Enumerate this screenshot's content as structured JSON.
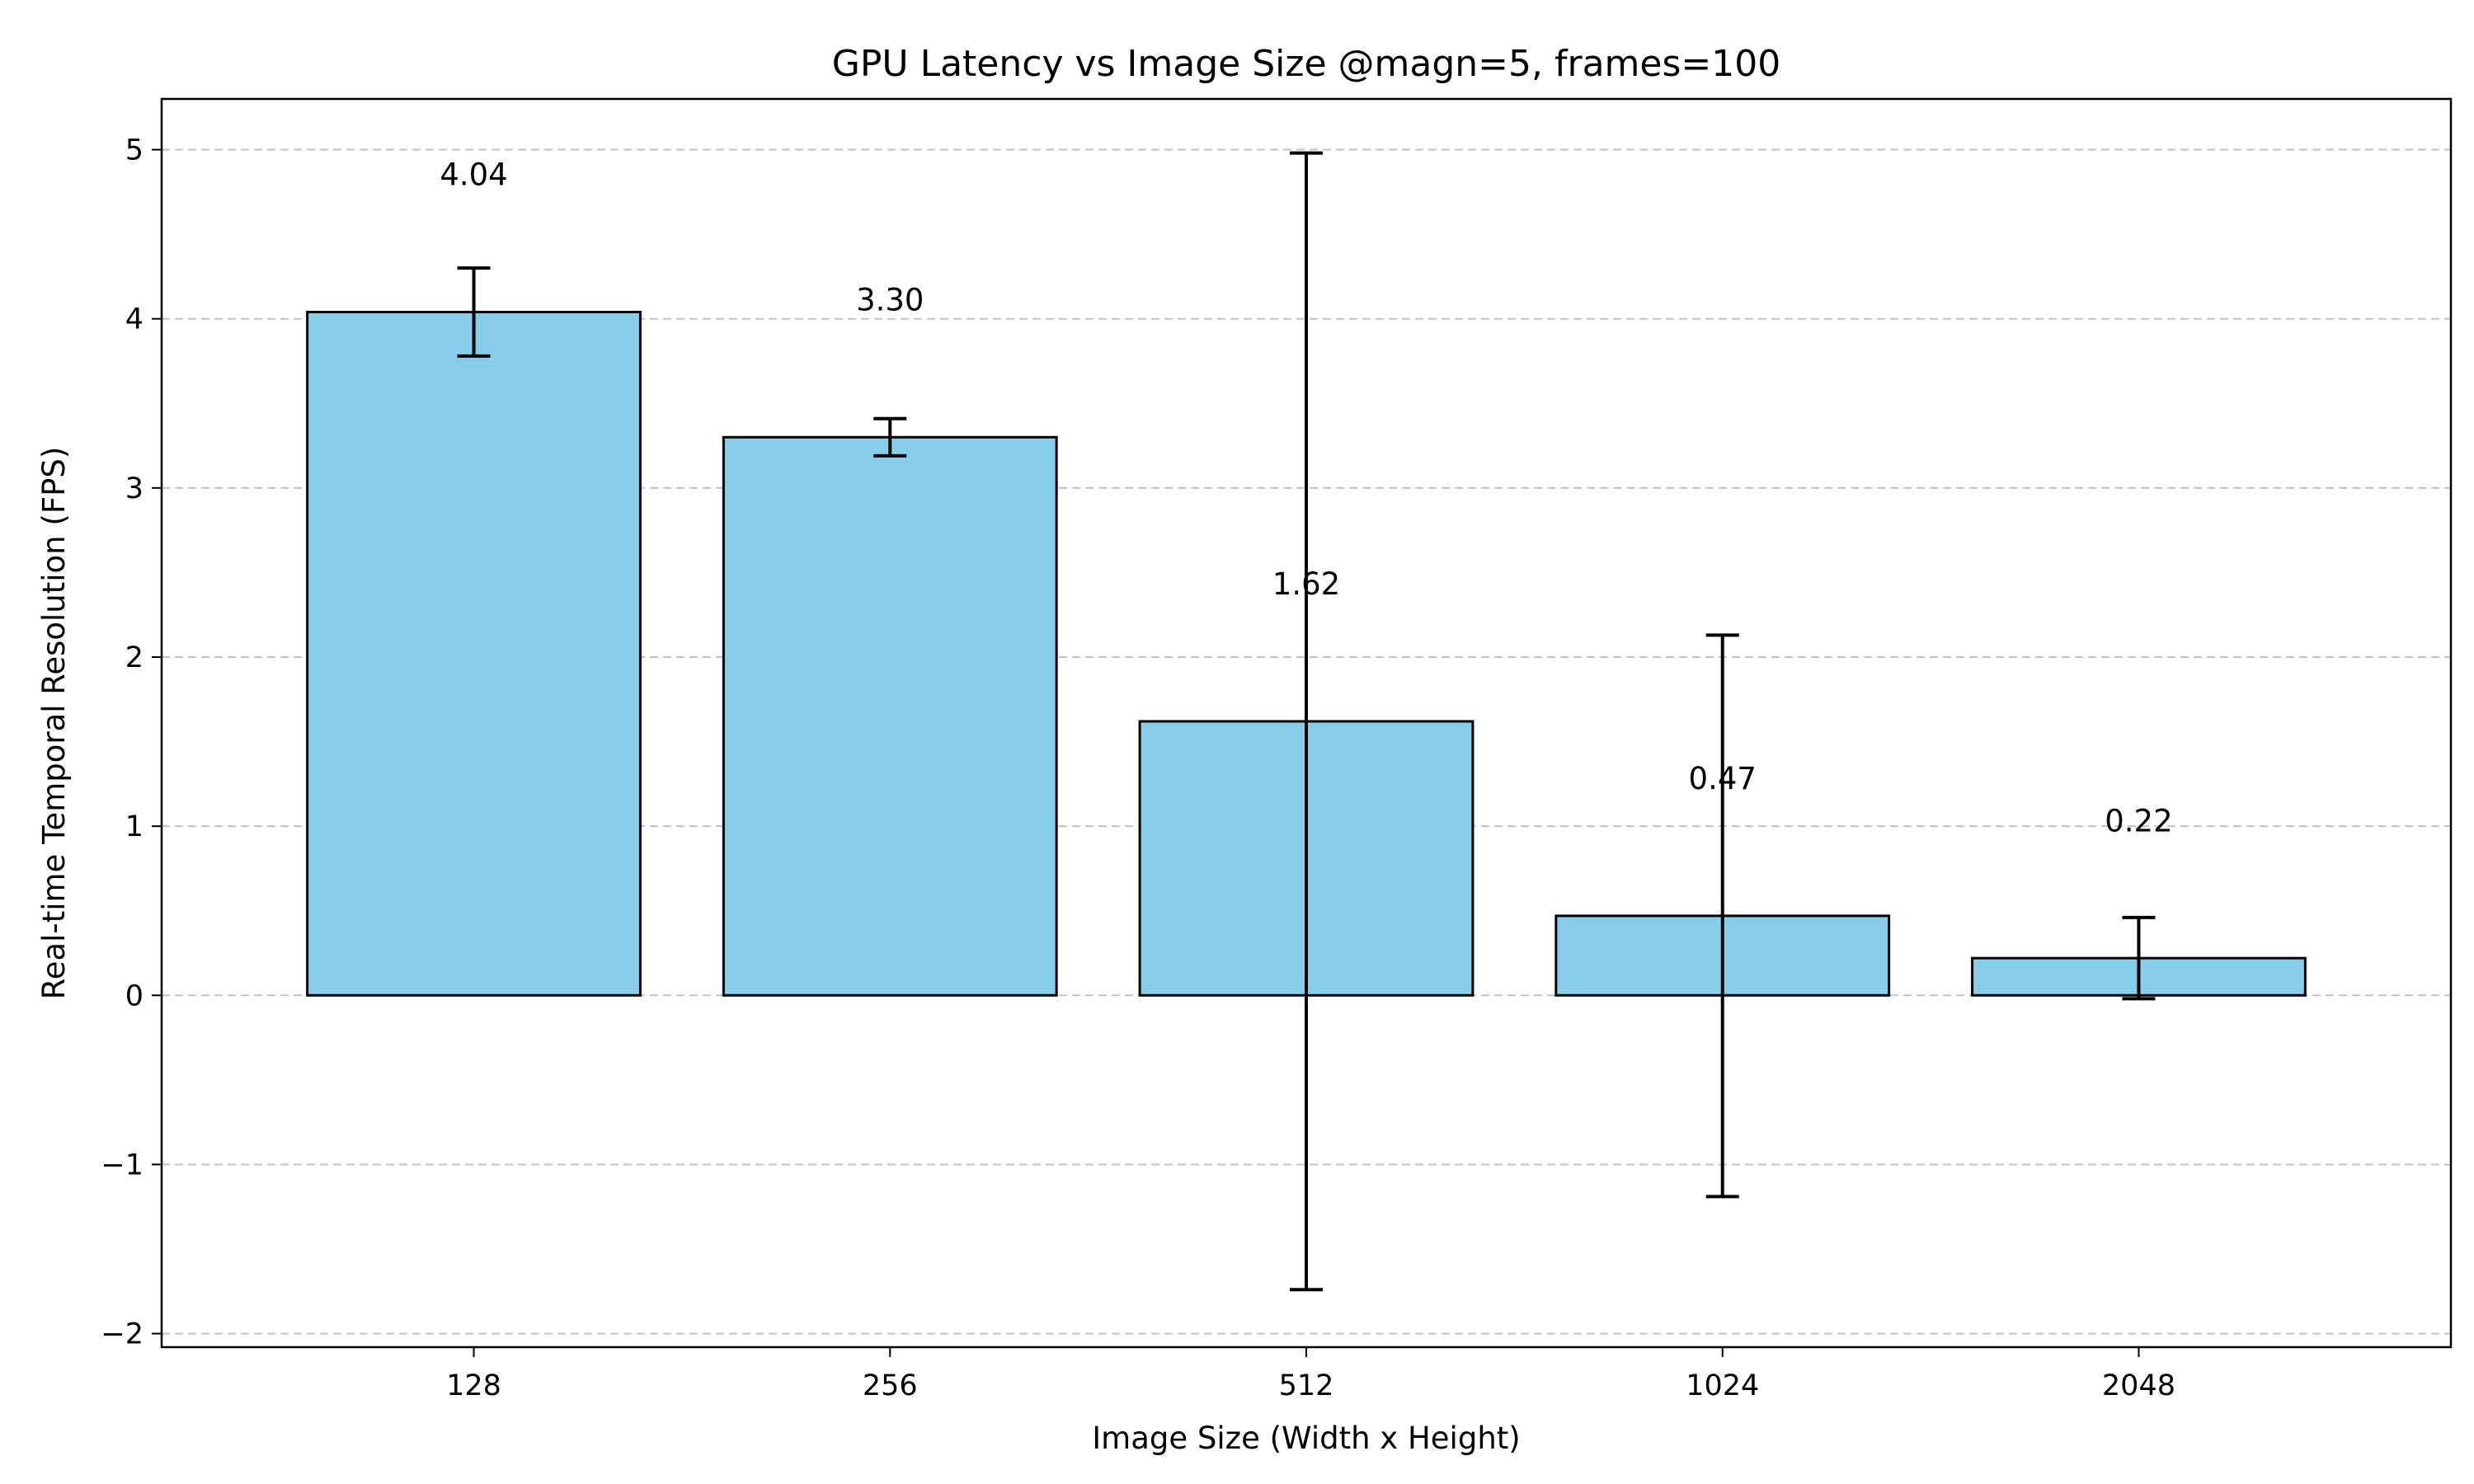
{
  "chart_data": {
    "type": "bar",
    "title": "GPU Latency vs Image Size @magn=5, frames=100",
    "xlabel": "Image Size (Width x Height)",
    "ylabel": "Real-time Temporal Resolution (FPS)",
    "categories": [
      "128",
      "256",
      "512",
      "1024",
      "2048"
    ],
    "values": [
      4.04,
      3.3,
      1.62,
      0.47,
      0.22
    ],
    "errors": [
      0.26,
      0.11,
      3.36,
      1.66,
      0.24
    ],
    "value_labels": [
      "4.04",
      "3.30",
      "1.62",
      "0.47",
      "0.22"
    ],
    "ylim": [
      -2.08,
      5.3
    ],
    "yticks": [
      -2,
      -1,
      0,
      1,
      2,
      3,
      4,
      5
    ],
    "ytick_labels": [
      "−2",
      "−1",
      "0",
      "1",
      "2",
      "3",
      "4",
      "5"
    ],
    "grid": "y",
    "bar_color": "#87CEEB",
    "edge_color": "#000000"
  }
}
